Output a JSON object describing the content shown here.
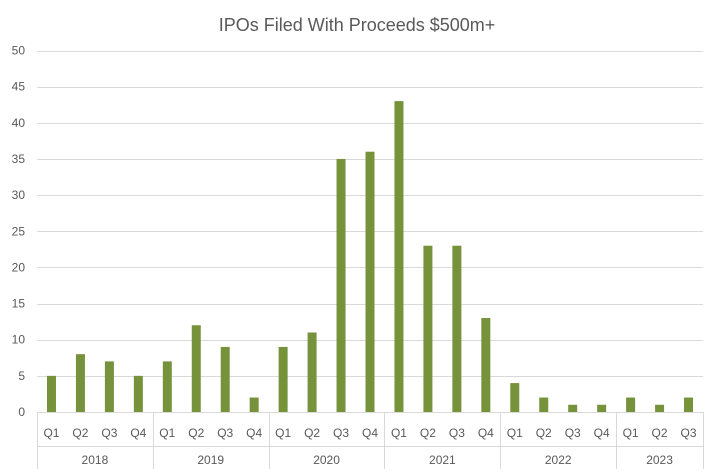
{
  "chart_data": {
    "type": "bar",
    "title": "IPOs Filed With Proceeds $500m+",
    "xlabel": "",
    "ylabel": "",
    "ylim": [
      0,
      50
    ],
    "yticks": [
      0,
      5,
      10,
      15,
      20,
      25,
      30,
      35,
      40,
      45,
      50
    ],
    "grid": true,
    "legend": "none",
    "bar_color": "#76933c",
    "categories": [
      "Q1",
      "Q2",
      "Q3",
      "Q4",
      "Q1",
      "Q2",
      "Q3",
      "Q4",
      "Q1",
      "Q2",
      "Q3",
      "Q4",
      "Q1",
      "Q2",
      "Q3",
      "Q4",
      "Q1",
      "Q2",
      "Q3",
      "Q4",
      "Q1",
      "Q2",
      "Q3"
    ],
    "groups": [
      {
        "label": "2018",
        "count": 4
      },
      {
        "label": "2019",
        "count": 4
      },
      {
        "label": "2020",
        "count": 4
      },
      {
        "label": "2021",
        "count": 4
      },
      {
        "label": "2022",
        "count": 4
      },
      {
        "label": "2023",
        "count": 3
      }
    ],
    "values": [
      5,
      8,
      7,
      5,
      7,
      12,
      9,
      2,
      9,
      11,
      35,
      36,
      43,
      23,
      23,
      13,
      4,
      2,
      1,
      1,
      2,
      1,
      2
    ]
  }
}
